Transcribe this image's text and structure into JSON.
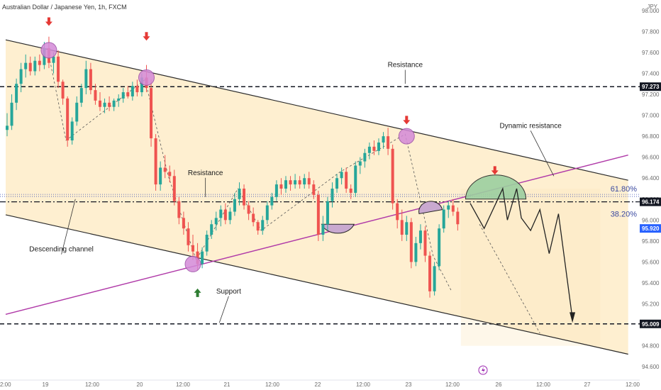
{
  "header": {
    "title": "Australian Dollar / Japanese Yen, 1h, FXCM",
    "currency": "JPY"
  },
  "chart_data": {
    "type": "candlestick",
    "y_axis": {
      "ticks": [
        "98.000",
        "97.800",
        "97.600",
        "97.400",
        "97.200",
        "97.000",
        "96.800",
        "96.600",
        "96.400",
        "96.200",
        "96.000",
        "95.800",
        "95.600",
        "95.400",
        "95.200",
        "95.000",
        "94.800",
        "94.600"
      ],
      "ylim": [
        94.5,
        98.1
      ]
    },
    "x_axis": {
      "ticks": [
        "2:00",
        "19",
        "12:00",
        "20",
        "12:00",
        "21",
        "12:00",
        "22",
        "12:00",
        "23",
        "12:00",
        "26",
        "12:00",
        "27",
        "12:00"
      ]
    },
    "price_tags": [
      {
        "value": 97.273,
        "label": "97.273",
        "style": "dark"
      },
      {
        "value": 96.174,
        "label": "96.174",
        "style": "dark"
      },
      {
        "value": 95.92,
        "label": "95.920",
        "style": "blue"
      },
      {
        "value": 95.009,
        "label": "95.009",
        "style": "dark"
      }
    ],
    "horizontal_levels": [
      {
        "value": 97.273,
        "style": "dashed"
      },
      {
        "value": 96.174,
        "style": "dash-dot"
      },
      {
        "value": 95.009,
        "style": "dashed"
      },
      {
        "value": 96.245,
        "style": "dotted-blue"
      },
      {
        "value": 96.225,
        "style": "dotted-blue"
      }
    ],
    "fib_labels": [
      {
        "label": "61.80%",
        "value": 96.3
      },
      {
        "label": "38.20%",
        "value": 96.06
      }
    ],
    "annotations": [
      {
        "text": "Resistance",
        "x_index": 86,
        "value": 97.46
      },
      {
        "text": "Dynamic resistance",
        "x_index": 113,
        "value": 96.88
      },
      {
        "text": "Resistance",
        "x_index": 43,
        "value": 96.43
      },
      {
        "text": "Descending channel",
        "x_index": 12,
        "value": 95.7
      },
      {
        "text": "Support",
        "x_index": 48,
        "value": 95.3
      }
    ],
    "channel": {
      "upper": {
        "from": {
          "x_index": 0,
          "value": 97.72
        },
        "to": {
          "x_index": 134,
          "value": 96.38
        }
      },
      "lower": {
        "from": {
          "x_index": 0,
          "value": 96.05
        },
        "to": {
          "x_index": 134,
          "value": 94.72
        }
      },
      "dynamic": {
        "from": {
          "x_index": 0,
          "value": 95.1
        },
        "to": {
          "x_index": 134,
          "value": 96.62
        }
      }
    },
    "candles": [
      {
        "o": 96.86,
        "h": 97.02,
        "l": 96.8,
        "c": 96.9
      },
      {
        "o": 96.9,
        "h": 97.2,
        "l": 96.86,
        "c": 97.12
      },
      {
        "o": 97.12,
        "h": 97.35,
        "l": 97.05,
        "c": 97.3
      },
      {
        "o": 97.3,
        "h": 97.5,
        "l": 97.22,
        "c": 97.44
      },
      {
        "o": 97.44,
        "h": 97.58,
        "l": 97.36,
        "c": 97.5
      },
      {
        "o": 97.5,
        "h": 97.56,
        "l": 97.38,
        "c": 97.42
      },
      {
        "o": 97.42,
        "h": 97.56,
        "l": 97.38,
        "c": 97.52
      },
      {
        "o": 97.52,
        "h": 97.58,
        "l": 97.42,
        "c": 97.48
      },
      {
        "o": 97.48,
        "h": 97.7,
        "l": 97.44,
        "c": 97.64
      },
      {
        "o": 97.64,
        "h": 97.75,
        "l": 97.45,
        "c": 97.5
      },
      {
        "o": 97.5,
        "h": 97.6,
        "l": 97.4,
        "c": 97.56
      },
      {
        "o": 97.56,
        "h": 97.62,
        "l": 97.26,
        "c": 97.32
      },
      {
        "o": 97.32,
        "h": 97.34,
        "l": 97.1,
        "c": 97.16
      },
      {
        "o": 97.16,
        "h": 97.18,
        "l": 96.7,
        "c": 96.76
      },
      {
        "o": 96.76,
        "h": 96.98,
        "l": 96.72,
        "c": 96.94
      },
      {
        "o": 96.94,
        "h": 97.18,
        "l": 96.9,
        "c": 97.12
      },
      {
        "o": 97.12,
        "h": 97.3,
        "l": 97.08,
        "c": 97.26
      },
      {
        "o": 97.26,
        "h": 97.52,
        "l": 97.2,
        "c": 97.44
      },
      {
        "o": 97.44,
        "h": 97.5,
        "l": 97.2,
        "c": 97.24
      },
      {
        "o": 97.24,
        "h": 97.3,
        "l": 97.1,
        "c": 97.14
      },
      {
        "o": 97.14,
        "h": 97.22,
        "l": 97.04,
        "c": 97.08
      },
      {
        "o": 97.08,
        "h": 97.16,
        "l": 97.02,
        "c": 97.12
      },
      {
        "o": 97.12,
        "h": 97.18,
        "l": 97.04,
        "c": 97.08
      },
      {
        "o": 97.08,
        "h": 97.16,
        "l": 97.04,
        "c": 97.14
      },
      {
        "o": 97.14,
        "h": 97.2,
        "l": 97.08,
        "c": 97.16
      },
      {
        "o": 97.16,
        "h": 97.26,
        "l": 97.12,
        "c": 97.22
      },
      {
        "o": 97.22,
        "h": 97.28,
        "l": 97.16,
        "c": 97.18
      },
      {
        "o": 97.18,
        "h": 97.32,
        "l": 97.14,
        "c": 97.28
      },
      {
        "o": 97.28,
        "h": 97.34,
        "l": 97.18,
        "c": 97.22
      },
      {
        "o": 97.22,
        "h": 97.4,
        "l": 97.18,
        "c": 97.36
      },
      {
        "o": 97.36,
        "h": 97.48,
        "l": 97.22,
        "c": 97.26
      },
      {
        "o": 97.26,
        "h": 97.34,
        "l": 96.7,
        "c": 96.78
      },
      {
        "o": 96.78,
        "h": 96.82,
        "l": 96.28,
        "c": 96.34
      },
      {
        "o": 96.34,
        "h": 96.56,
        "l": 96.28,
        "c": 96.5
      },
      {
        "o": 96.5,
        "h": 96.62,
        "l": 96.4,
        "c": 96.46
      },
      {
        "o": 96.46,
        "h": 96.52,
        "l": 96.36,
        "c": 96.42
      },
      {
        "o": 96.42,
        "h": 96.48,
        "l": 96.14,
        "c": 96.18
      },
      {
        "o": 96.18,
        "h": 96.22,
        "l": 95.96,
        "c": 96.02
      },
      {
        "o": 96.02,
        "h": 96.08,
        "l": 95.86,
        "c": 95.92
      },
      {
        "o": 95.92,
        "h": 95.98,
        "l": 95.7,
        "c": 95.76
      },
      {
        "o": 95.76,
        "h": 95.86,
        "l": 95.62,
        "c": 95.7
      },
      {
        "o": 95.7,
        "h": 95.78,
        "l": 95.52,
        "c": 95.58
      },
      {
        "o": 95.58,
        "h": 95.74,
        "l": 95.54,
        "c": 95.7
      },
      {
        "o": 95.7,
        "h": 95.9,
        "l": 95.66,
        "c": 95.86
      },
      {
        "o": 95.86,
        "h": 96.0,
        "l": 95.82,
        "c": 95.96
      },
      {
        "o": 95.96,
        "h": 96.08,
        "l": 95.9,
        "c": 96.02
      },
      {
        "o": 96.02,
        "h": 96.14,
        "l": 95.94,
        "c": 96.1
      },
      {
        "o": 96.1,
        "h": 96.16,
        "l": 95.96,
        "c": 96.0
      },
      {
        "o": 96.0,
        "h": 96.12,
        "l": 95.96,
        "c": 96.08
      },
      {
        "o": 96.08,
        "h": 96.26,
        "l": 96.04,
        "c": 96.2
      },
      {
        "o": 96.2,
        "h": 96.36,
        "l": 96.14,
        "c": 96.3
      },
      {
        "o": 96.3,
        "h": 96.34,
        "l": 96.1,
        "c": 96.14
      },
      {
        "o": 96.14,
        "h": 96.18,
        "l": 96.0,
        "c": 96.06
      },
      {
        "o": 96.06,
        "h": 96.12,
        "l": 95.94,
        "c": 95.98
      },
      {
        "o": 95.98,
        "h": 96.0,
        "l": 95.86,
        "c": 95.9
      },
      {
        "o": 95.9,
        "h": 96.04,
        "l": 95.86,
        "c": 96.0
      },
      {
        "o": 96.0,
        "h": 96.18,
        "l": 95.96,
        "c": 96.14
      },
      {
        "o": 96.14,
        "h": 96.26,
        "l": 96.1,
        "c": 96.22
      },
      {
        "o": 96.22,
        "h": 96.38,
        "l": 96.18,
        "c": 96.34
      },
      {
        "o": 96.34,
        "h": 96.4,
        "l": 96.24,
        "c": 96.3
      },
      {
        "o": 96.3,
        "h": 96.42,
        "l": 96.26,
        "c": 96.38
      },
      {
        "o": 96.38,
        "h": 96.42,
        "l": 96.28,
        "c": 96.34
      },
      {
        "o": 96.34,
        "h": 96.44,
        "l": 96.3,
        "c": 96.38
      },
      {
        "o": 96.38,
        "h": 96.42,
        "l": 96.3,
        "c": 96.34
      },
      {
        "o": 96.34,
        "h": 96.44,
        "l": 96.3,
        "c": 96.4
      },
      {
        "o": 96.4,
        "h": 96.46,
        "l": 96.3,
        "c": 96.34
      },
      {
        "o": 96.34,
        "h": 96.38,
        "l": 96.2,
        "c": 96.24
      },
      {
        "o": 96.24,
        "h": 96.28,
        "l": 95.8,
        "c": 95.86
      },
      {
        "o": 95.86,
        "h": 96.04,
        "l": 95.8,
        "c": 95.96
      },
      {
        "o": 95.96,
        "h": 96.22,
        "l": 95.9,
        "c": 96.18
      },
      {
        "o": 96.18,
        "h": 96.36,
        "l": 96.12,
        "c": 96.3
      },
      {
        "o": 96.3,
        "h": 96.44,
        "l": 96.26,
        "c": 96.4
      },
      {
        "o": 96.4,
        "h": 96.5,
        "l": 96.34,
        "c": 96.46
      },
      {
        "o": 96.46,
        "h": 96.5,
        "l": 96.26,
        "c": 96.3
      },
      {
        "o": 96.3,
        "h": 96.34,
        "l": 96.2,
        "c": 96.26
      },
      {
        "o": 96.26,
        "h": 96.56,
        "l": 96.22,
        "c": 96.52
      },
      {
        "o": 96.52,
        "h": 96.6,
        "l": 96.44,
        "c": 96.56
      },
      {
        "o": 96.56,
        "h": 96.68,
        "l": 96.5,
        "c": 96.64
      },
      {
        "o": 96.64,
        "h": 96.74,
        "l": 96.58,
        "c": 96.7
      },
      {
        "o": 96.7,
        "h": 96.76,
        "l": 96.62,
        "c": 96.66
      },
      {
        "o": 96.66,
        "h": 96.78,
        "l": 96.62,
        "c": 96.74
      },
      {
        "o": 96.74,
        "h": 96.84,
        "l": 96.68,
        "c": 96.8
      },
      {
        "o": 96.8,
        "h": 96.88,
        "l": 96.62,
        "c": 96.68
      },
      {
        "o": 96.68,
        "h": 96.72,
        "l": 96.1,
        "c": 96.16
      },
      {
        "o": 96.16,
        "h": 96.2,
        "l": 95.92,
        "c": 96.0
      },
      {
        "o": 96.0,
        "h": 96.1,
        "l": 95.8,
        "c": 95.86
      },
      {
        "o": 95.86,
        "h": 96.04,
        "l": 95.8,
        "c": 95.98
      },
      {
        "o": 95.98,
        "h": 96.02,
        "l": 95.54,
        "c": 95.6
      },
      {
        "o": 95.6,
        "h": 95.84,
        "l": 95.56,
        "c": 95.78
      },
      {
        "o": 95.78,
        "h": 95.96,
        "l": 95.72,
        "c": 95.9
      },
      {
        "o": 95.9,
        "h": 95.94,
        "l": 95.6,
        "c": 95.66
      },
      {
        "o": 95.66,
        "h": 95.7,
        "l": 95.26,
        "c": 95.32
      },
      {
        "o": 95.32,
        "h": 95.6,
        "l": 95.28,
        "c": 95.56
      },
      {
        "o": 95.56,
        "h": 95.96,
        "l": 95.52,
        "c": 95.92
      },
      {
        "o": 95.92,
        "h": 96.14,
        "l": 95.88,
        "c": 96.1
      },
      {
        "o": 96.1,
        "h": 96.18,
        "l": 96.02,
        "c": 96.14
      },
      {
        "o": 96.14,
        "h": 96.2,
        "l": 96.04,
        "c": 96.08
      },
      {
        "o": 96.08,
        "h": 96.12,
        "l": 95.9,
        "c": 95.96
      }
    ],
    "arrows": [
      {
        "dir": "down",
        "x_index": 9,
        "value": 97.88
      },
      {
        "dir": "down",
        "x_index": 30,
        "value": 97.74
      },
      {
        "dir": "down",
        "x_index": 86,
        "value": 96.94
      },
      {
        "dir": "up",
        "x_index": 41,
        "value": 95.32
      },
      {
        "dir": "down",
        "x_index": 105,
        "value": 96.46
      }
    ]
  },
  "colors": {
    "bull": "#26a69a",
    "bear": "#ef5350",
    "channel_fill": "#fde9c0",
    "circle": "#d48ad8",
    "dynamic_line": "#b03aa8",
    "arrow_red": "#e53935",
    "arrow_green": "#2e7d32",
    "blue_tag": "#2962ff",
    "dark_tag": "#131722",
    "green_dome": "#9ccfa0"
  },
  "footer": {
    "icon": "lightning-icon"
  }
}
